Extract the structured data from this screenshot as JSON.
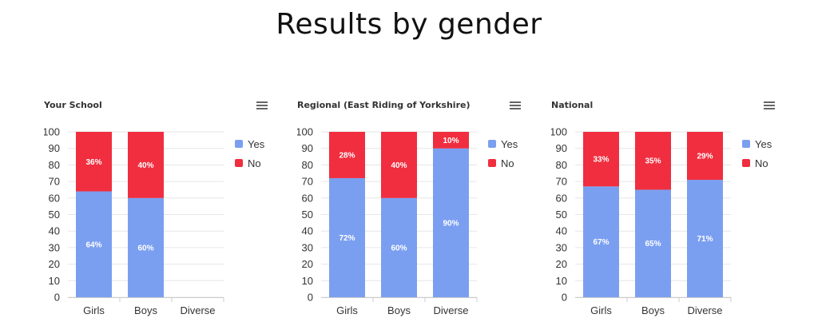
{
  "page": {
    "title": "Results by gender"
  },
  "colors": {
    "yes": "#7b9ff0",
    "no": "#f02e3f",
    "grid": "#e6e6e6",
    "axis_text": "#333333"
  },
  "icons": {
    "menu": "hamburger-menu-icon"
  },
  "chart_data": [
    {
      "type": "bar",
      "stacked": true,
      "title": "Your School",
      "categories": [
        "Girls",
        "Boys",
        "Diverse"
      ],
      "ylim": [
        0,
        100
      ],
      "yticks": [
        0,
        10,
        20,
        30,
        40,
        50,
        60,
        70,
        80,
        90,
        100
      ],
      "grid": true,
      "legend": "right",
      "series": [
        {
          "name": "Yes",
          "values": [
            64,
            60,
            null
          ],
          "labels": [
            "64%",
            "60%",
            ""
          ]
        },
        {
          "name": "No",
          "values": [
            36,
            40,
            null
          ],
          "labels": [
            "36%",
            "40%",
            ""
          ]
        }
      ]
    },
    {
      "type": "bar",
      "stacked": true,
      "title": "Regional (East Riding of Yorkshire)",
      "categories": [
        "Girls",
        "Boys",
        "Diverse"
      ],
      "ylim": [
        0,
        100
      ],
      "yticks": [
        0,
        10,
        20,
        30,
        40,
        50,
        60,
        70,
        80,
        90,
        100
      ],
      "grid": true,
      "legend": "right",
      "series": [
        {
          "name": "Yes",
          "values": [
            72,
            60,
            90
          ],
          "labels": [
            "72%",
            "60%",
            "90%"
          ]
        },
        {
          "name": "No",
          "values": [
            28,
            40,
            10
          ],
          "labels": [
            "28%",
            "40%",
            "10%"
          ]
        }
      ]
    },
    {
      "type": "bar",
      "stacked": true,
      "title": "National",
      "categories": [
        "Girls",
        "Boys",
        "Diverse"
      ],
      "ylim": [
        0,
        100
      ],
      "yticks": [
        0,
        10,
        20,
        30,
        40,
        50,
        60,
        70,
        80,
        90,
        100
      ],
      "grid": true,
      "legend": "right",
      "series": [
        {
          "name": "Yes",
          "values": [
            67,
            65,
            71
          ],
          "labels": [
            "67%",
            "65%",
            "71%"
          ]
        },
        {
          "name": "No",
          "values": [
            33,
            35,
            29
          ],
          "labels": [
            "33%",
            "35%",
            "29%"
          ]
        }
      ]
    }
  ]
}
